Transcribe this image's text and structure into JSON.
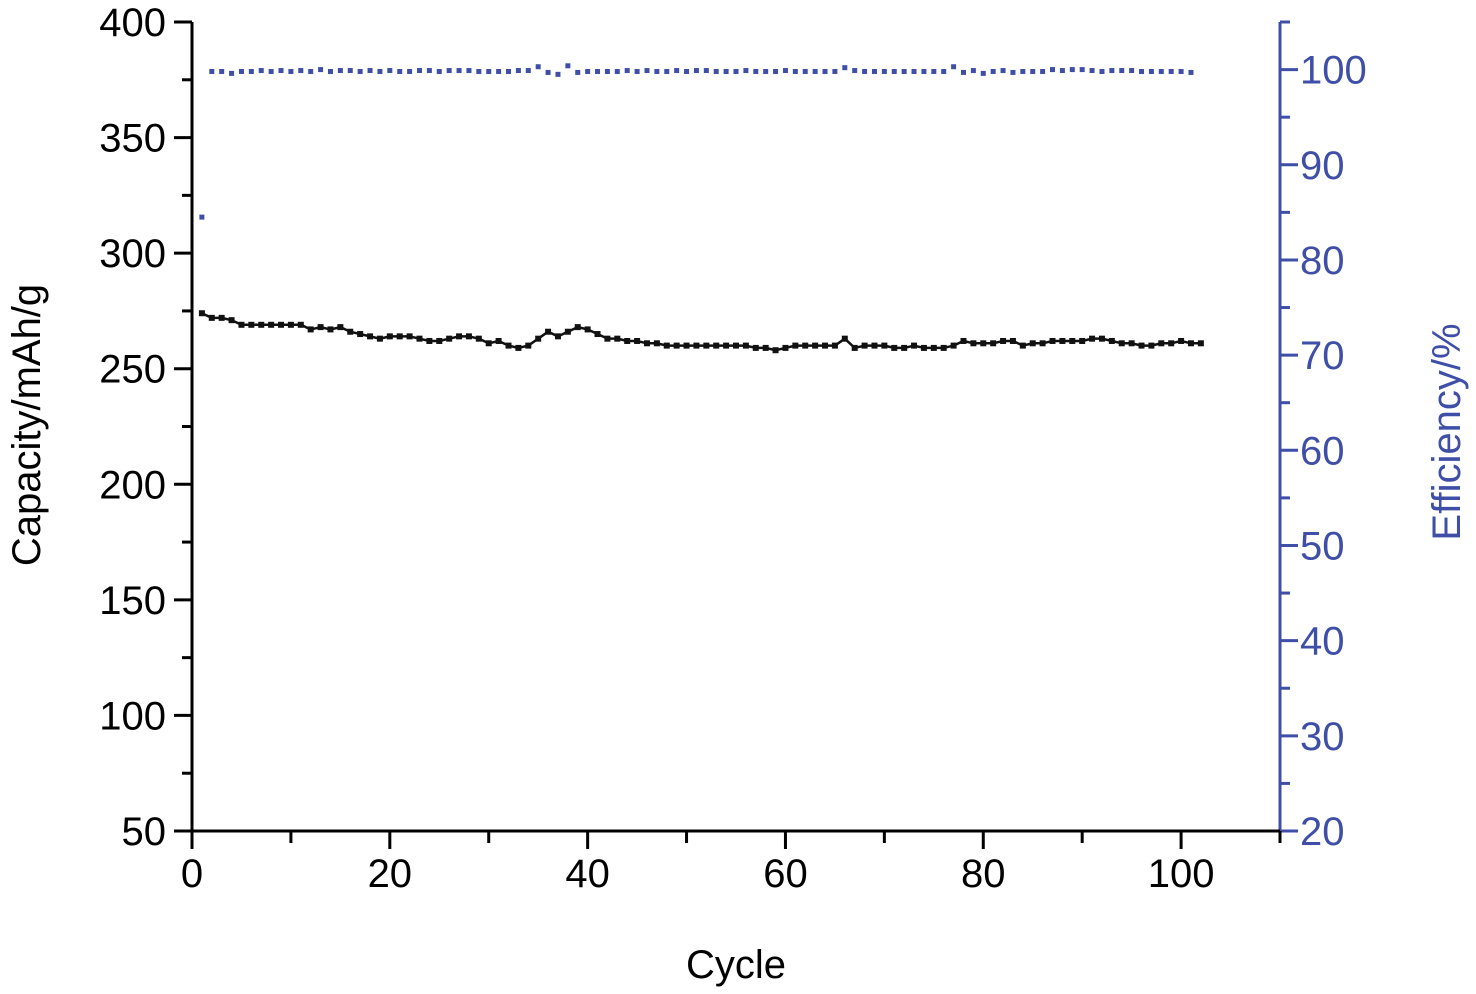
{
  "chart_data": {
    "type": "line",
    "xlabel": "Cycle",
    "ylabel": "Capacity/mAh/g",
    "y2label": "Efficiency/%",
    "xlim": [
      0,
      110
    ],
    "ylim": [
      50,
      400
    ],
    "y2lim": [
      20,
      105
    ],
    "x_ticks": [
      0,
      20,
      40,
      60,
      80,
      100
    ],
    "y_ticks": [
      50,
      100,
      150,
      200,
      250,
      300,
      350,
      400
    ],
    "y2_ticks": [
      20,
      30,
      40,
      50,
      60,
      70,
      80,
      90,
      100
    ],
    "grid": false,
    "legend": "none",
    "colors": {
      "capacity": "#111111",
      "efficiency": "#3f4fa8",
      "right_axis": "#3f4fa8",
      "left_axis": "#000000"
    },
    "series": [
      {
        "axis": "left",
        "marker": "square",
        "values": [
          [
            1,
            274
          ],
          [
            2,
            272
          ],
          [
            3,
            272
          ],
          [
            4,
            271
          ],
          [
            5,
            269
          ],
          [
            6,
            269
          ],
          [
            7,
            269
          ],
          [
            8,
            269
          ],
          [
            9,
            269
          ],
          [
            10,
            269
          ],
          [
            11,
            269
          ],
          [
            12,
            267
          ],
          [
            13,
            268
          ],
          [
            14,
            267
          ],
          [
            15,
            268
          ],
          [
            16,
            266
          ],
          [
            17,
            265
          ],
          [
            18,
            264
          ],
          [
            19,
            263
          ],
          [
            20,
            264
          ],
          [
            21,
            264
          ],
          [
            22,
            264
          ],
          [
            23,
            263
          ],
          [
            24,
            262
          ],
          [
            25,
            262
          ],
          [
            26,
            263
          ],
          [
            27,
            264
          ],
          [
            28,
            264
          ],
          [
            29,
            263
          ],
          [
            30,
            261
          ],
          [
            31,
            262
          ],
          [
            32,
            260
          ],
          [
            33,
            259
          ],
          [
            34,
            260
          ],
          [
            35,
            263
          ],
          [
            36,
            266
          ],
          [
            37,
            264
          ],
          [
            38,
            266
          ],
          [
            39,
            268
          ],
          [
            40,
            267
          ],
          [
            41,
            265
          ],
          [
            42,
            263
          ],
          [
            43,
            263
          ],
          [
            44,
            262
          ],
          [
            45,
            262
          ],
          [
            46,
            261
          ],
          [
            47,
            261
          ],
          [
            48,
            260
          ],
          [
            49,
            260
          ],
          [
            50,
            260
          ],
          [
            51,
            260
          ],
          [
            52,
            260
          ],
          [
            53,
            260
          ],
          [
            54,
            260
          ],
          [
            55,
            260
          ],
          [
            56,
            260
          ],
          [
            57,
            259
          ],
          [
            58,
            259
          ],
          [
            59,
            258
          ],
          [
            60,
            259
          ],
          [
            61,
            260
          ],
          [
            62,
            260
          ],
          [
            63,
            260
          ],
          [
            64,
            260
          ],
          [
            65,
            260
          ],
          [
            66,
            263
          ],
          [
            67,
            259
          ],
          [
            68,
            260
          ],
          [
            69,
            260
          ],
          [
            70,
            260
          ],
          [
            71,
            259
          ],
          [
            72,
            259
          ],
          [
            73,
            260
          ],
          [
            74,
            259
          ],
          [
            75,
            259
          ],
          [
            76,
            259
          ],
          [
            77,
            260
          ],
          [
            78,
            262
          ],
          [
            79,
            261
          ],
          [
            80,
            261
          ],
          [
            81,
            261
          ],
          [
            82,
            262
          ],
          [
            83,
            262
          ],
          [
            84,
            260
          ],
          [
            85,
            261
          ],
          [
            86,
            261
          ],
          [
            87,
            262
          ],
          [
            88,
            262
          ],
          [
            89,
            262
          ],
          [
            90,
            262
          ],
          [
            91,
            263
          ],
          [
            92,
            263
          ],
          [
            93,
            262
          ],
          [
            94,
            261
          ],
          [
            95,
            261
          ],
          [
            96,
            260
          ],
          [
            97,
            260
          ],
          [
            98,
            261
          ],
          [
            99,
            261
          ],
          [
            100,
            262
          ],
          [
            101,
            261
          ],
          [
            102,
            261
          ]
        ]
      },
      {
        "axis": "right",
        "marker": "square-small",
        "values": [
          [
            1,
            84.5
          ],
          [
            2,
            99.8
          ],
          [
            3,
            99.8
          ],
          [
            4,
            99.6
          ],
          [
            5,
            99.8
          ],
          [
            6,
            99.8
          ],
          [
            7,
            99.9
          ],
          [
            8,
            99.8
          ],
          [
            9,
            99.9
          ],
          [
            10,
            99.8
          ],
          [
            11,
            99.9
          ],
          [
            12,
            99.8
          ],
          [
            13,
            100.0
          ],
          [
            14,
            99.8
          ],
          [
            15,
            99.9
          ],
          [
            16,
            99.9
          ],
          [
            17,
            99.8
          ],
          [
            18,
            99.9
          ],
          [
            19,
            99.8
          ],
          [
            20,
            99.9
          ],
          [
            21,
            99.8
          ],
          [
            22,
            99.8
          ],
          [
            23,
            99.9
          ],
          [
            24,
            99.9
          ],
          [
            25,
            99.8
          ],
          [
            26,
            99.9
          ],
          [
            27,
            99.9
          ],
          [
            28,
            99.9
          ],
          [
            29,
            99.8
          ],
          [
            30,
            99.8
          ],
          [
            31,
            99.8
          ],
          [
            32,
            99.8
          ],
          [
            33,
            99.9
          ],
          [
            34,
            99.9
          ],
          [
            35,
            100.3
          ],
          [
            36,
            99.7
          ],
          [
            37,
            99.5
          ],
          [
            38,
            100.4
          ],
          [
            39,
            99.7
          ],
          [
            40,
            99.8
          ],
          [
            41,
            99.8
          ],
          [
            42,
            99.8
          ],
          [
            43,
            99.8
          ],
          [
            44,
            99.9
          ],
          [
            45,
            99.8
          ],
          [
            46,
            99.9
          ],
          [
            47,
            99.8
          ],
          [
            48,
            99.8
          ],
          [
            49,
            99.9
          ],
          [
            50,
            99.8
          ],
          [
            51,
            99.9
          ],
          [
            52,
            99.9
          ],
          [
            53,
            99.8
          ],
          [
            54,
            99.8
          ],
          [
            55,
            99.8
          ],
          [
            56,
            99.9
          ],
          [
            57,
            99.8
          ],
          [
            58,
            99.8
          ],
          [
            59,
            99.8
          ],
          [
            60,
            99.9
          ],
          [
            61,
            99.8
          ],
          [
            62,
            99.8
          ],
          [
            63,
            99.8
          ],
          [
            64,
            99.8
          ],
          [
            65,
            99.8
          ],
          [
            66,
            100.2
          ],
          [
            67,
            99.9
          ],
          [
            68,
            99.8
          ],
          [
            69,
            99.8
          ],
          [
            70,
            99.8
          ],
          [
            71,
            99.8
          ],
          [
            72,
            99.8
          ],
          [
            73,
            99.8
          ],
          [
            74,
            99.8
          ],
          [
            75,
            99.8
          ],
          [
            76,
            99.8
          ],
          [
            77,
            100.3
          ],
          [
            78,
            99.7
          ],
          [
            79,
            99.9
          ],
          [
            80,
            99.6
          ],
          [
            81,
            99.8
          ],
          [
            82,
            99.9
          ],
          [
            83,
            99.7
          ],
          [
            84,
            99.8
          ],
          [
            85,
            99.8
          ],
          [
            86,
            99.8
          ],
          [
            87,
            100.0
          ],
          [
            88,
            99.9
          ],
          [
            89,
            100.0
          ],
          [
            90,
            100.0
          ],
          [
            91,
            99.9
          ],
          [
            92,
            99.8
          ],
          [
            93,
            99.9
          ],
          [
            94,
            99.9
          ],
          [
            95,
            99.9
          ],
          [
            96,
            99.8
          ],
          [
            97,
            99.8
          ],
          [
            98,
            99.8
          ],
          [
            99,
            99.8
          ],
          [
            100,
            99.8
          ],
          [
            101,
            99.7
          ]
        ]
      }
    ]
  }
}
